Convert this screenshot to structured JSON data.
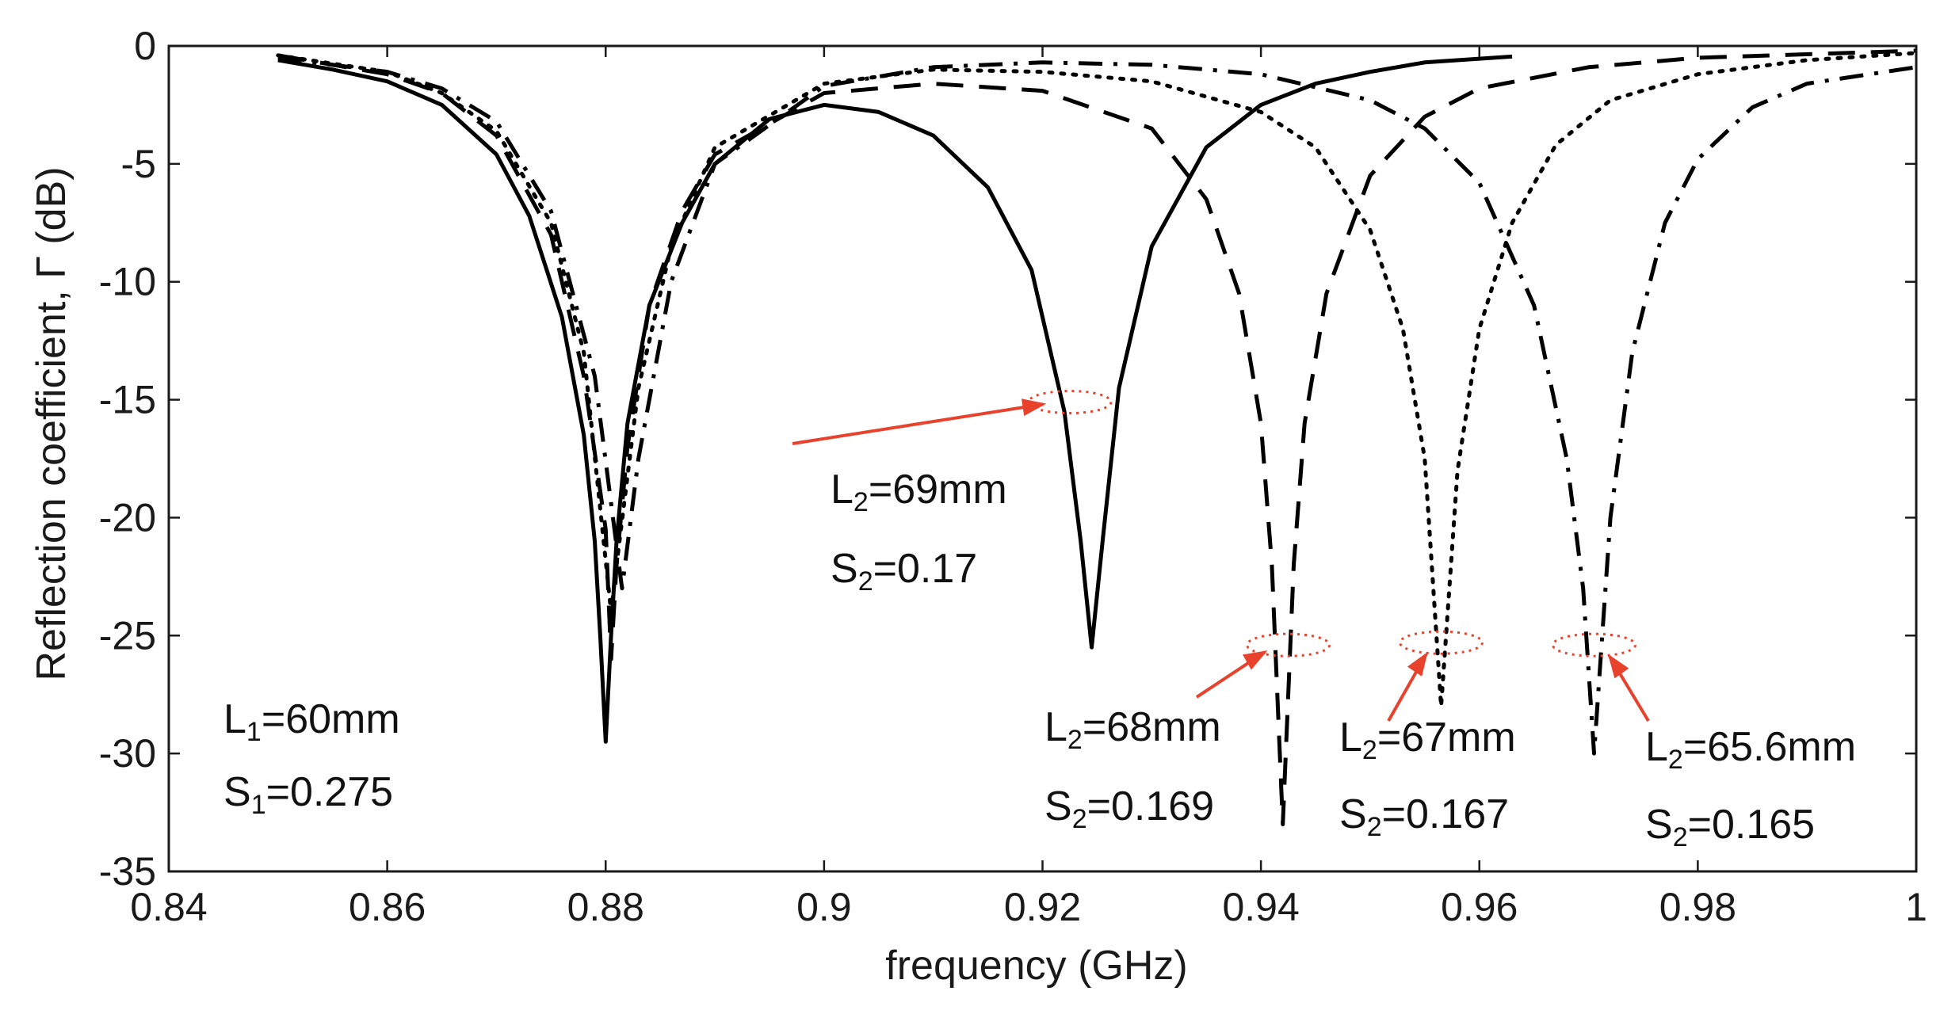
{
  "chart_data": {
    "type": "line",
    "xlabel": "frequency (GHz)",
    "ylabel": "Reflection coefficient, Γ (dB)",
    "xlim": [
      0.84,
      1.0
    ],
    "ylim": [
      -35,
      0
    ],
    "xticks": [
      "0.84",
      "0.86",
      "0.88",
      "0.9",
      "0.92",
      "0.94",
      "0.96",
      "0.98",
      "1"
    ],
    "xtick_values": [
      0.84,
      0.86,
      0.88,
      0.9,
      0.92,
      0.94,
      0.96,
      0.98,
      1.0
    ],
    "yticks": [
      "0",
      "-5",
      "-10",
      "-15",
      "-20",
      "-25",
      "-30",
      "-35"
    ],
    "ytick_values": [
      0,
      -5,
      -10,
      -15,
      -20,
      -25,
      -30,
      -35
    ],
    "grid": false,
    "series": [
      {
        "name": "L2=69mm",
        "style": "solid",
        "x": [
          0.85,
          0.855,
          0.86,
          0.865,
          0.87,
          0.873,
          0.876,
          0.878,
          0.879,
          0.8795,
          0.88,
          0.8805,
          0.881,
          0.882,
          0.884,
          0.887,
          0.89,
          0.895,
          0.9,
          0.905,
          0.91,
          0.915,
          0.919,
          0.922,
          0.9235,
          0.9245,
          0.9255,
          0.927,
          0.93,
          0.935,
          0.94,
          0.945,
          0.95,
          0.955,
          0.963
        ],
        "y": [
          -0.6,
          -1.0,
          -1.5,
          -2.5,
          -4.6,
          -7.2,
          -11.5,
          -16.5,
          -21.0,
          -25.0,
          -29.5,
          -25.0,
          -21.0,
          -16.0,
          -11.0,
          -7.5,
          -5.0,
          -3.1,
          -2.5,
          -2.8,
          -3.8,
          -6.0,
          -9.5,
          -15.5,
          -21.0,
          -25.5,
          -21.0,
          -14.5,
          -8.5,
          -4.3,
          -2.5,
          -1.6,
          -1.1,
          -0.7,
          -0.45
        ]
      },
      {
        "name": "L2=68mm",
        "style": "dashed",
        "x": [
          0.85,
          0.86,
          0.865,
          0.87,
          0.875,
          0.878,
          0.88,
          0.8805,
          0.881,
          0.882,
          0.884,
          0.887,
          0.89,
          0.9,
          0.91,
          0.92,
          0.93,
          0.935,
          0.938,
          0.94,
          0.941,
          0.942,
          0.943,
          0.944,
          0.946,
          0.95,
          0.955,
          0.96,
          0.97,
          0.98,
          1.0
        ],
        "y": [
          -0.4,
          -1.2,
          -2.0,
          -3.8,
          -8.0,
          -14.0,
          -20.5,
          -26.0,
          -22.0,
          -17.0,
          -11.0,
          -7.0,
          -4.6,
          -2.0,
          -1.6,
          -1.9,
          -3.5,
          -6.5,
          -10.5,
          -16.0,
          -22.0,
          -33.0,
          -22.0,
          -16.0,
          -10.5,
          -5.5,
          -3.0,
          -1.8,
          -0.9,
          -0.5,
          -0.2
        ]
      },
      {
        "name": "L2=67mm",
        "style": "dotted",
        "x": [
          0.85,
          0.86,
          0.865,
          0.87,
          0.875,
          0.878,
          0.8805,
          0.881,
          0.883,
          0.886,
          0.89,
          0.9,
          0.91,
          0.92,
          0.93,
          0.94,
          0.945,
          0.95,
          0.953,
          0.955,
          0.9565,
          0.958,
          0.96,
          0.963,
          0.967,
          0.972,
          0.98,
          0.99,
          1.0
        ],
        "y": [
          -0.4,
          -1.1,
          -2.0,
          -3.6,
          -7.5,
          -13.0,
          -24.0,
          -22.0,
          -14.5,
          -8.5,
          -4.3,
          -1.6,
          -1.0,
          -1.1,
          -1.5,
          -2.8,
          -4.3,
          -7.8,
          -12.0,
          -17.5,
          -28.0,
          -18.0,
          -12.0,
          -7.5,
          -4.2,
          -2.3,
          -1.2,
          -0.6,
          -0.3
        ]
      },
      {
        "name": "L2=65.6mm",
        "style": "dashdot",
        "x": [
          0.85,
          0.86,
          0.865,
          0.87,
          0.875,
          0.879,
          0.8815,
          0.883,
          0.886,
          0.89,
          0.9,
          0.91,
          0.92,
          0.93,
          0.94,
          0.95,
          0.955,
          0.96,
          0.965,
          0.968,
          0.9695,
          0.9705,
          0.972,
          0.974,
          0.977,
          0.98,
          0.985,
          0.99,
          1.0
        ],
        "y": [
          -0.5,
          -1.1,
          -1.8,
          -3.2,
          -7.0,
          -14.0,
          -23.0,
          -17.5,
          -10.0,
          -5.0,
          -1.7,
          -0.9,
          -0.7,
          -0.8,
          -1.2,
          -2.3,
          -3.5,
          -5.8,
          -11.0,
          -17.5,
          -23.0,
          -30.0,
          -20.0,
          -13.0,
          -7.5,
          -4.8,
          -2.6,
          -1.6,
          -0.9
        ]
      }
    ],
    "annotations": {
      "left": [
        {
          "main": "L",
          "sub": "1",
          "rest": "=60mm"
        },
        {
          "main": "S",
          "sub": "1",
          "rest": "=0.275"
        }
      ],
      "labels": [
        {
          "series": "L2=69mm",
          "lines": [
            {
              "main": "L",
              "sub": "2",
              "rest": "=69mm"
            },
            {
              "main": "S",
              "sub": "2",
              "rest": "=0.17"
            }
          ],
          "marker": {
            "x": 0.9225,
            "y": -15.1
          }
        },
        {
          "series": "L2=68mm",
          "lines": [
            {
              "main": "L",
              "sub": "2",
              "rest": "=68mm"
            },
            {
              "main": "S",
              "sub": "2",
              "rest": "=0.169"
            }
          ],
          "marker": {
            "x": 0.9425,
            "y": -25.4
          }
        },
        {
          "series": "L2=67mm",
          "lines": [
            {
              "main": "L",
              "sub": "2",
              "rest": "=67mm"
            },
            {
              "main": "S",
              "sub": "2",
              "rest": "=0.167"
            }
          ],
          "marker": {
            "x": 0.9565,
            "y": -25.3
          }
        },
        {
          "series": "L2=65.6mm",
          "lines": [
            {
              "main": "L",
              "sub": "2",
              "rest": "=65.6mm"
            },
            {
              "main": "S",
              "sub": "2",
              "rest": "=0.165"
            }
          ],
          "marker": {
            "x": 0.9705,
            "y": -25.4
          }
        }
      ]
    },
    "colors": {
      "line": "#000000",
      "marker": "#e8412c",
      "axis": "#1a1a1a"
    }
  }
}
